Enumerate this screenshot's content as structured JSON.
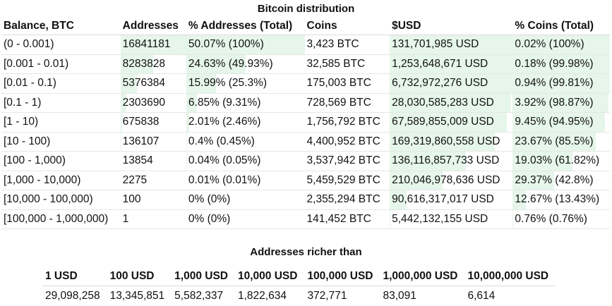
{
  "title": "Bitcoin distribution",
  "columns": [
    "Balance, BTC",
    "Addresses",
    "% Addresses (Total)",
    "Coins",
    "$USD",
    "% Coins (Total)"
  ],
  "rows": [
    {
      "balance": "(0 - 0.001)",
      "addresses": "16841181",
      "addr_pct": "50.07% (100%)",
      "coins": "3,423 BTC",
      "usd": "131,701,985 USD",
      "coins_pct": "0.02% (100%)",
      "addr_share": 1.0,
      "coins_share": 1.0
    },
    {
      "balance": "[0.001 - 0.01)",
      "addresses": "8283828",
      "addr_pct": "24.63% (49.93%)",
      "coins": "32,585 BTC",
      "usd": "1,253,648,671 USD",
      "coins_pct": "0.18% (99.98%)",
      "addr_share": 0.4993,
      "coins_share": 0.9998
    },
    {
      "balance": "[0.01 - 0.1)",
      "addresses": "5376384",
      "addr_pct": "15.99% (25.3%)",
      "coins": "175,003 BTC",
      "usd": "6,732,972,276 USD",
      "coins_pct": "0.94% (99.81%)",
      "addr_share": 0.253,
      "coins_share": 0.9981
    },
    {
      "balance": "[0.1 - 1)",
      "addresses": "2303690",
      "addr_pct": "6.85% (9.31%)",
      "coins": "728,569 BTC",
      "usd": "28,030,585,283 USD",
      "coins_pct": "3.92% (98.87%)",
      "addr_share": 0.0931,
      "coins_share": 0.9887
    },
    {
      "balance": "[1 - 10)",
      "addresses": "675838",
      "addr_pct": "2.01% (2.46%)",
      "coins": "1,756,792 BTC",
      "usd": "67,589,855,009 USD",
      "coins_pct": "9.45% (94.95%)",
      "addr_share": 0.0246,
      "coins_share": 0.9495
    },
    {
      "balance": "[10 - 100)",
      "addresses": "136107",
      "addr_pct": "0.4% (0.45%)",
      "coins": "4,400,952 BTC",
      "usd": "169,319,860,558 USD",
      "coins_pct": "23.67% (85.5%)",
      "addr_share": 0.0045,
      "coins_share": 0.855
    },
    {
      "balance": "[100 - 1,000)",
      "addresses": "13854",
      "addr_pct": "0.04% (0.05%)",
      "coins": "3,537,942 BTC",
      "usd": "136,116,857,733 USD",
      "coins_pct": "19.03% (61.82%)",
      "addr_share": 0.0005,
      "coins_share": 0.6182
    },
    {
      "balance": "[1,000 - 10,000)",
      "addresses": "2275",
      "addr_pct": "0.01% (0.01%)",
      "coins": "5,459,529 BTC",
      "usd": "210,046,978,636 USD",
      "coins_pct": "29.37% (42.8%)",
      "addr_share": 0.0001,
      "coins_share": 0.428
    },
    {
      "balance": "[10,000 - 100,000)",
      "addresses": "100",
      "addr_pct": "0% (0%)",
      "coins": "2,355,294 BTC",
      "usd": "90,616,317,017 USD",
      "coins_pct": "12.67% (13.43%)",
      "addr_share": 0,
      "coins_share": 0.1343
    },
    {
      "balance": "[100,000 - 1,000,000)",
      "addresses": "1",
      "addr_pct": "0% (0%)",
      "coins": "141,452 BTC",
      "usd": "5,442,132,155 USD",
      "coins_pct": "0.76% (0.76%)",
      "addr_share": 0,
      "coins_share": 0.0076
    }
  ],
  "richer": {
    "title": "Addresses richer than",
    "headers": [
      "1 USD",
      "100 USD",
      "1,000 USD",
      "10,000 USD",
      "100,000 USD",
      "1,000,000 USD",
      "10,000,000 USD"
    ],
    "values": [
      "29,098,258",
      "13,345,851",
      "5,582,337",
      "1,822,634",
      "372,771",
      "83,091",
      "6,614"
    ]
  },
  "colors": {
    "bar_fill": "#e6f6ea"
  }
}
